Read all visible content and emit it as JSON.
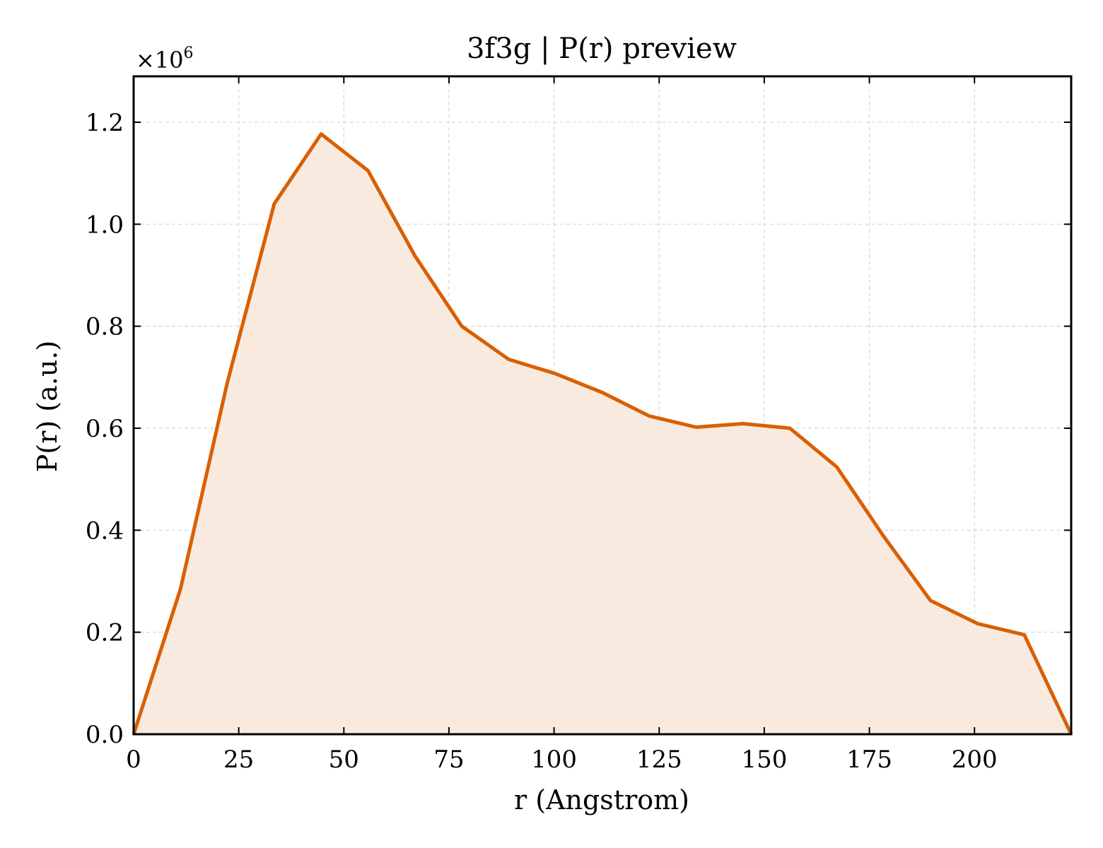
{
  "chart_data": {
    "type": "area",
    "title": "3f3g | P(r) preview",
    "xlabel": "r (Angstrom)",
    "ylabel": "P(r) (a.u.)",
    "y_multiplier": "×10",
    "y_multiplier_exponent": "6",
    "xlim": [
      0,
      223
    ],
    "ylim": [
      0,
      1.29
    ],
    "xticks": [
      0,
      25,
      50,
      75,
      100,
      125,
      150,
      175,
      200
    ],
    "yticks": [
      0.0,
      0.2,
      0.4,
      0.6,
      0.8,
      1.0,
      1.2
    ],
    "ytick_labels": [
      "0.0",
      "0.2",
      "0.4",
      "0.6",
      "0.8",
      "1.0",
      "1.2"
    ],
    "grid": true,
    "line_color": "#d95f02",
    "fill_color": "#f9eae0",
    "series": [
      {
        "x": [
          0,
          11.15,
          22.3,
          33.45,
          44.6,
          55.75,
          66.9,
          78.05,
          89.2,
          100.35,
          111.5,
          122.65,
          133.8,
          144.95,
          156.1,
          167.25,
          178.4,
          189.55,
          200.7,
          211.85,
          223
        ],
        "y": [
          0.0,
          0.285,
          0.69,
          1.04,
          1.177,
          1.105,
          0.938,
          0.8,
          0.735,
          0.707,
          0.67,
          0.624,
          0.602,
          0.609,
          0.6,
          0.524,
          0.388,
          0.262,
          0.217,
          0.195,
          0.0
        ]
      }
    ]
  }
}
